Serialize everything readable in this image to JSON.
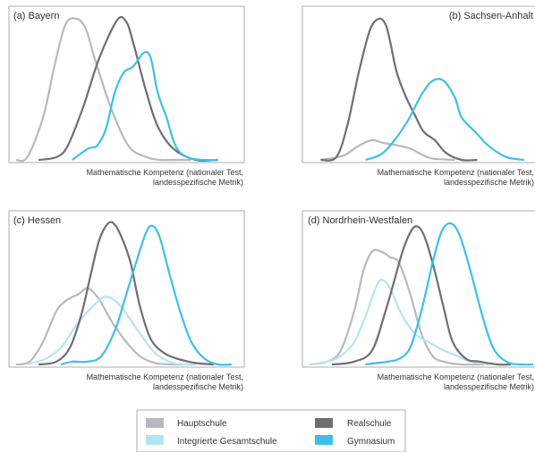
{
  "chart_data": [
    {
      "type": "line",
      "title": "(a) Bayern",
      "xlabel": [
        "Mathematische Kompetenz (nationaler Test,",
        "landesspezifische Metrik)"
      ],
      "ylabel": "",
      "grid": false,
      "series": [
        {
          "name": "Hauptschule",
          "color": "#b9b9bd",
          "x": [
            0.0,
            0.05,
            0.12,
            0.17,
            0.22,
            0.27,
            0.31,
            0.35,
            0.42,
            0.5,
            0.58,
            0.64,
            0.7,
            0.78
          ],
          "y": [
            0.0,
            0.02,
            0.3,
            0.66,
            0.96,
            1.0,
            0.93,
            0.72,
            0.38,
            0.1,
            0.02,
            0.0,
            0.0,
            0.0
          ]
        },
        {
          "name": "Realschule",
          "color": "#6f6f72",
          "x": [
            0.1,
            0.18,
            0.23,
            0.3,
            0.37,
            0.45,
            0.49,
            0.52,
            0.58,
            0.63,
            0.7,
            0.8,
            0.9
          ],
          "y": [
            0.0,
            0.02,
            0.1,
            0.38,
            0.72,
            0.99,
            0.98,
            0.84,
            0.48,
            0.24,
            0.08,
            0.0,
            0.0
          ]
        },
        {
          "name": "Gymnasium",
          "color": "#3cc0ea",
          "x": [
            0.25,
            0.32,
            0.36,
            0.4,
            0.44,
            0.48,
            0.52,
            0.57,
            0.6,
            0.63,
            0.67,
            0.71,
            0.76,
            0.83,
            0.9
          ],
          "y": [
            0.0,
            0.08,
            0.1,
            0.22,
            0.48,
            0.62,
            0.66,
            0.76,
            0.72,
            0.48,
            0.3,
            0.1,
            0.02,
            0.0,
            0.0
          ]
        }
      ]
    },
    {
      "type": "line",
      "title": "(b) Sachsen-Anhalt",
      "xlabel": [
        "Mathematische Kompetenz (nationaler Test,",
        "landesspezifische Metrik)"
      ],
      "ylabel": "",
      "grid": false,
      "series": [
        {
          "name": "Hauptschule",
          "color": "#b9b9bd",
          "x": [
            0.05,
            0.15,
            0.22,
            0.28,
            0.33,
            0.4,
            0.45,
            0.5,
            0.55,
            0.65
          ],
          "y": [
            0.0,
            0.03,
            0.1,
            0.14,
            0.12,
            0.1,
            0.08,
            0.04,
            0.01,
            0.0
          ]
        },
        {
          "name": "Realschule",
          "color": "#6f6f72",
          "x": [
            0.05,
            0.12,
            0.17,
            0.22,
            0.27,
            0.31,
            0.34,
            0.36,
            0.39,
            0.43,
            0.47,
            0.51,
            0.56,
            0.61,
            0.68,
            0.75
          ],
          "y": [
            0.0,
            0.02,
            0.25,
            0.62,
            0.92,
            1.0,
            0.96,
            0.84,
            0.62,
            0.45,
            0.32,
            0.2,
            0.14,
            0.05,
            0.0,
            0.0
          ]
        },
        {
          "name": "Gymnasium",
          "color": "#3cc0ea",
          "x": [
            0.25,
            0.32,
            0.38,
            0.44,
            0.5,
            0.55,
            0.6,
            0.65,
            0.68,
            0.74,
            0.8,
            0.88,
            0.96
          ],
          "y": [
            0.0,
            0.04,
            0.14,
            0.28,
            0.46,
            0.56,
            0.56,
            0.44,
            0.3,
            0.2,
            0.1,
            0.02,
            0.0
          ]
        }
      ]
    },
    {
      "type": "line",
      "title": "(c) Hessen",
      "xlabel": [
        "Mathematische Kompetenz (nationaler Test,",
        "landesspezifische Metrik)"
      ],
      "ylabel": "",
      "grid": false,
      "series": [
        {
          "name": "Hauptschule",
          "color": "#b9b9bd",
          "x": [
            0.0,
            0.06,
            0.12,
            0.18,
            0.23,
            0.28,
            0.32,
            0.37,
            0.42,
            0.48,
            0.55,
            0.62,
            0.7,
            0.8
          ],
          "y": [
            0.0,
            0.02,
            0.16,
            0.38,
            0.46,
            0.5,
            0.54,
            0.46,
            0.32,
            0.18,
            0.06,
            0.01,
            0.0,
            0.0
          ]
        },
        {
          "name": "Integrierte Gesamtschule",
          "color": "#b3e4f6",
          "x": [
            0.05,
            0.13,
            0.2,
            0.26,
            0.31,
            0.36,
            0.4,
            0.45,
            0.5,
            0.56,
            0.62,
            0.7,
            0.8
          ],
          "y": [
            0.0,
            0.04,
            0.12,
            0.26,
            0.36,
            0.44,
            0.48,
            0.44,
            0.34,
            0.2,
            0.08,
            0.01,
            0.0
          ]
        },
        {
          "name": "Realschule",
          "color": "#6f6f72",
          "x": [
            0.1,
            0.18,
            0.24,
            0.29,
            0.33,
            0.37,
            0.41,
            0.44,
            0.47,
            0.51,
            0.55,
            0.6,
            0.66,
            0.72,
            0.8,
            0.88
          ],
          "y": [
            0.0,
            0.02,
            0.12,
            0.35,
            0.62,
            0.88,
            1.0,
            0.99,
            0.9,
            0.72,
            0.42,
            0.18,
            0.08,
            0.04,
            0.01,
            0.0
          ]
        },
        {
          "name": "Gymnasium",
          "color": "#3cc0ea",
          "x": [
            0.2,
            0.25,
            0.32,
            0.38,
            0.44,
            0.48,
            0.53,
            0.58,
            0.61,
            0.64,
            0.68,
            0.73,
            0.78,
            0.84,
            0.9,
            0.96
          ],
          "y": [
            0.0,
            0.02,
            0.02,
            0.06,
            0.24,
            0.44,
            0.7,
            0.94,
            0.98,
            0.9,
            0.66,
            0.38,
            0.16,
            0.04,
            0.0,
            0.0
          ]
        }
      ]
    },
    {
      "type": "line",
      "title": "(d) Nordrhein-Westfalen",
      "xlabel": [
        "Mathematische Kompetenz (nationaler Test,",
        "landesspezifische Metrik)"
      ],
      "ylabel": "",
      "grid": false,
      "series": [
        {
          "name": "Hauptschule",
          "color": "#b9b9bd",
          "x": [
            0.0,
            0.08,
            0.14,
            0.2,
            0.24,
            0.28,
            0.32,
            0.36,
            0.4,
            0.45,
            0.5,
            0.55,
            0.6,
            0.68,
            0.78
          ],
          "y": [
            0.0,
            0.02,
            0.1,
            0.38,
            0.66,
            0.8,
            0.8,
            0.76,
            0.72,
            0.5,
            0.22,
            0.06,
            0.02,
            0.0,
            0.0
          ]
        },
        {
          "name": "Integrierte Gesamtschule",
          "color": "#b3e4f6",
          "x": [
            0.0,
            0.08,
            0.14,
            0.2,
            0.25,
            0.29,
            0.32,
            0.36,
            0.41,
            0.47,
            0.53,
            0.6,
            0.66,
            0.72,
            0.8
          ],
          "y": [
            0.0,
            0.02,
            0.06,
            0.16,
            0.34,
            0.52,
            0.6,
            0.54,
            0.36,
            0.22,
            0.16,
            0.1,
            0.06,
            0.02,
            0.0
          ]
        },
        {
          "name": "Realschule",
          "color": "#6f6f72",
          "x": [
            0.1,
            0.2,
            0.28,
            0.34,
            0.38,
            0.42,
            0.46,
            0.49,
            0.52,
            0.56,
            0.6,
            0.64,
            0.7,
            0.76,
            0.84,
            0.9
          ],
          "y": [
            0.0,
            0.02,
            0.1,
            0.38,
            0.6,
            0.82,
            0.96,
            0.97,
            0.88,
            0.66,
            0.4,
            0.16,
            0.04,
            0.02,
            0.0,
            0.0
          ]
        },
        {
          "name": "Gymnasium",
          "color": "#3cc0ea",
          "x": [
            0.25,
            0.3,
            0.35,
            0.4,
            0.45,
            0.5,
            0.55,
            0.59,
            0.63,
            0.67,
            0.72,
            0.77,
            0.82,
            0.88,
            0.94,
            1.0
          ],
          "y": [
            0.0,
            0.01,
            0.02,
            0.04,
            0.12,
            0.38,
            0.72,
            0.94,
            1.0,
            0.92,
            0.66,
            0.36,
            0.12,
            0.02,
            0.0,
            0.0
          ]
        }
      ]
    }
  ],
  "legend": [
    {
      "label": "Hauptschule",
      "color": "#b9b9bd"
    },
    {
      "label": "Realschule",
      "color": "#6f6f72"
    },
    {
      "label": "Integrierte Gesamtschule",
      "color": "#b3e4f6"
    },
    {
      "label": "Gymnasium",
      "color": "#3cc0ea"
    }
  ]
}
